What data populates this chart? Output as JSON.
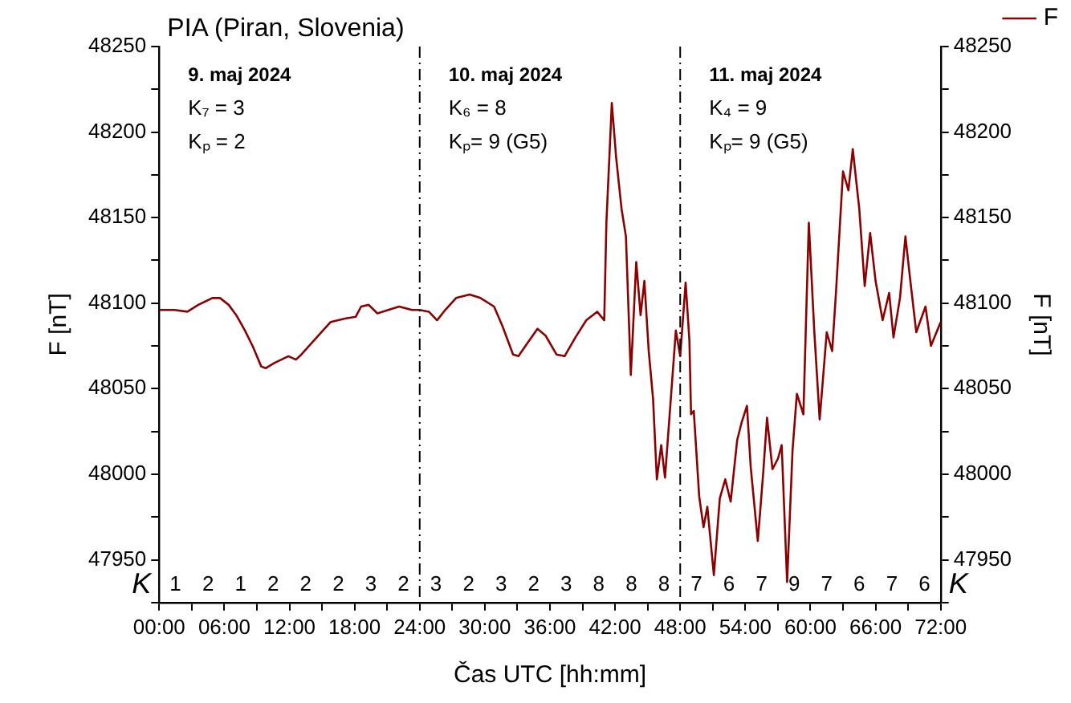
{
  "chart_data": {
    "type": "line",
    "title": "PIA (Piran, Slovenia)",
    "xlabel": "Čas UTC [hh:mm]",
    "ylabel": "F [nT]",
    "y2label": "F [nT]",
    "legend": "top right",
    "grid": false,
    "marker": "none",
    "line_style": "solid",
    "xlim": [
      0,
      72
    ],
    "xticks": [
      {
        "value": 0,
        "label": "00:00"
      },
      {
        "value": 3,
        "label": null
      },
      {
        "value": 6,
        "label": "06:00"
      },
      {
        "value": 9,
        "label": null
      },
      {
        "value": 12,
        "label": "12:00"
      },
      {
        "value": 15,
        "label": null
      },
      {
        "value": 18,
        "label": "18:00"
      },
      {
        "value": 21,
        "label": null
      },
      {
        "value": 24,
        "label": "24:00"
      },
      {
        "value": 27,
        "label": null
      },
      {
        "value": 30,
        "label": "30:00"
      },
      {
        "value": 33,
        "label": null
      },
      {
        "value": 36,
        "label": "36:00"
      },
      {
        "value": 39,
        "label": null
      },
      {
        "value": 42,
        "label": "42:00"
      },
      {
        "value": 45,
        "label": null
      },
      {
        "value": 48,
        "label": "48:00"
      },
      {
        "value": 51,
        "label": null
      },
      {
        "value": 54,
        "label": "54:00"
      },
      {
        "value": 57,
        "label": null
      },
      {
        "value": 60,
        "label": "60:00"
      },
      {
        "value": 63,
        "label": null
      },
      {
        "value": 66,
        "label": "66:00"
      },
      {
        "value": 69,
        "label": null
      },
      {
        "value": 72,
        "label": "72:00"
      }
    ],
    "ylim": [
      47925,
      48250
    ],
    "yticks": [
      {
        "value": 47925,
        "label": null
      },
      47950,
      {
        "value": 47975,
        "label": null
      },
      48000,
      {
        "value": 48025,
        "label": null
      },
      48050,
      {
        "value": 48075,
        "label": null
      },
      48100,
      {
        "value": 48125,
        "label": null
      },
      48150,
      {
        "value": 48175,
        "label": null
      },
      48200,
      {
        "value": 48225,
        "label": null
      },
      48250
    ],
    "y2lim": [
      47925,
      48250
    ],
    "y2ticks": [
      {
        "value": 47925,
        "label": null
      },
      47950,
      {
        "value": 47975,
        "label": null
      },
      48000,
      {
        "value": 48025,
        "label": null
      },
      48050,
      {
        "value": 48075,
        "label": null
      },
      48100,
      {
        "value": 48125,
        "label": null
      },
      48150,
      {
        "value": 48175,
        "label": null
      },
      48200,
      {
        "value": 48225,
        "label": null
      },
      48250
    ],
    "ref_lines": [
      {
        "axis": "x",
        "value": 24,
        "color": "#000000",
        "line_style": "dashdot"
      },
      {
        "axis": "x",
        "value": 48,
        "color": "#000000",
        "line_style": "dashdot"
      }
    ],
    "series": [
      {
        "name": "F",
        "color": "#8b0000",
        "x": [
          0,
          1.4,
          2.6,
          3.6,
          4.9,
          5.6,
          6.4,
          7.1,
          7.9,
          8.6,
          9.4,
          9.8,
          10.6,
          11.9,
          12.6,
          13.1,
          13.8,
          14.8,
          15.8,
          17.1,
          18.1,
          18.6,
          19.3,
          20.1,
          21.1,
          22.1,
          23.3,
          24,
          24.85,
          25.6,
          26.35,
          27.35,
          28.6,
          29.6,
          30.85,
          31.6,
          32.6,
          33.1,
          33.85,
          34.85,
          35.6,
          36.6,
          37.35,
          38.35,
          39.35,
          40.35,
          41,
          41.2,
          41.7,
          42.1,
          42.6,
          43,
          43.45,
          43.95,
          44.35,
          44.7,
          45.1,
          45.5,
          45.85,
          46.25,
          46.6,
          47.1,
          47.6,
          48,
          48.5,
          48.85,
          49,
          49.25,
          49.75,
          50.15,
          50.5,
          51.1,
          51.65,
          52.15,
          52.65,
          53.25,
          53.65,
          54.15,
          54.5,
          55.15,
          55.65,
          56,
          56.5,
          57,
          57.35,
          57.85,
          58.35,
          58.75,
          59.35,
          59.85,
          60.35,
          60.85,
          61.5,
          62,
          62.35,
          63,
          63.5,
          63.9,
          64.5,
          65,
          65.5,
          66,
          66.65,
          67.25,
          67.65,
          68.25,
          68.75,
          69.15,
          69.75,
          70.6,
          71.1,
          72
        ],
        "values": [
          48096,
          48096,
          48095,
          48099,
          48103,
          48103,
          48099,
          48093,
          48084,
          48075,
          48063,
          48062,
          48065,
          48069,
          48067,
          48070,
          48075,
          48082,
          48089,
          48091,
          48092,
          48098,
          48099,
          48094,
          48096,
          48098,
          48096,
          48096,
          48095,
          48090,
          48096,
          48103,
          48105,
          48103,
          48098,
          48087,
          48070,
          48069,
          48076,
          48085,
          48081,
          48070,
          48069,
          48080,
          48090,
          48095,
          48090,
          48147,
          48217,
          48185,
          48155,
          48139,
          48058,
          48124,
          48093,
          48113,
          48072,
          48044,
          47997,
          48017,
          47998,
          48041,
          48084,
          48069,
          48112,
          48078,
          48035,
          48037,
          47987,
          47969,
          47981,
          47941,
          47986,
          47997,
          47984,
          48020,
          48030,
          48040,
          48004,
          47961,
          48001,
          48033,
          48003,
          48009,
          48017,
          47937,
          48014,
          48047,
          48035,
          48147,
          48084,
          48032,
          48083,
          48072,
          48106,
          48177,
          48166,
          48190,
          48155,
          48110,
          48141,
          48113,
          48090,
          48106,
          48080,
          48103,
          48139,
          48116,
          48083,
          48098,
          48075,
          48089
        ]
      }
    ],
    "annotations": [
      "9. maj 2024",
      "K₇ = 3",
      "Kₚ = 2",
      "10. maj 2024",
      "K₆ = 8",
      "Kₚ= 9 (G5)",
      "11. maj 2024",
      "K₄ = 9",
      "Kₚ= 9 (G5)",
      "K",
      "K",
      "1",
      "2",
      "1",
      "2",
      "2",
      "2",
      "3",
      "2",
      "3",
      "2",
      "3",
      "2",
      "3",
      "8",
      "8",
      "8",
      "7",
      "6",
      "7",
      "9",
      "7",
      "6",
      "7",
      "6"
    ]
  }
}
